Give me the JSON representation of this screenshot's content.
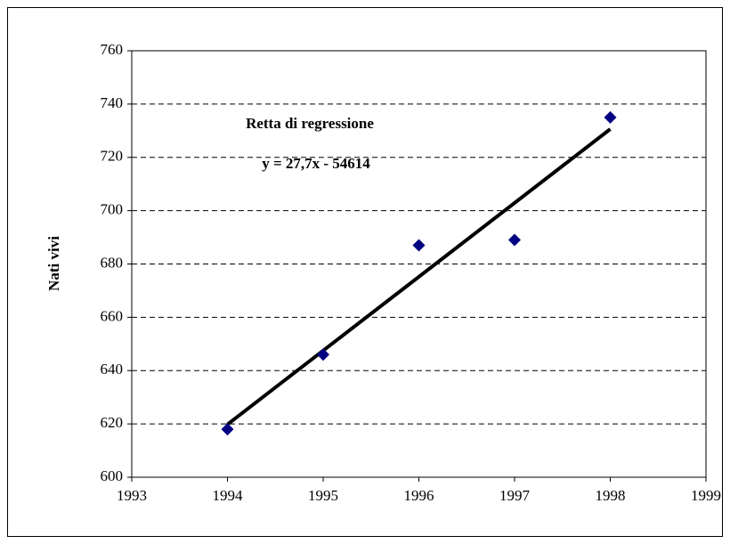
{
  "chart_data": {
    "type": "scatter",
    "y_label": "Nati vivi",
    "annotations": [
      "Retta di regressione",
      "y = 27,7x - 54614"
    ],
    "x": [
      1994,
      1995,
      1996,
      1997,
      1998
    ],
    "values": [
      618,
      646,
      687,
      689,
      735
    ],
    "color": "#000080",
    "trendline": {
      "x": [
        1994,
        1998
      ],
      "values": [
        619.8,
        730.6
      ],
      "color": "#000000"
    },
    "xlim": [
      1993,
      1999
    ],
    "xticks": [
      1993,
      1994,
      1995,
      1996,
      1997,
      1998,
      1999
    ],
    "ylim": [
      600,
      760
    ],
    "yticks": [
      600,
      620,
      640,
      660,
      680,
      700,
      720,
      740,
      760
    ],
    "grid": true
  }
}
